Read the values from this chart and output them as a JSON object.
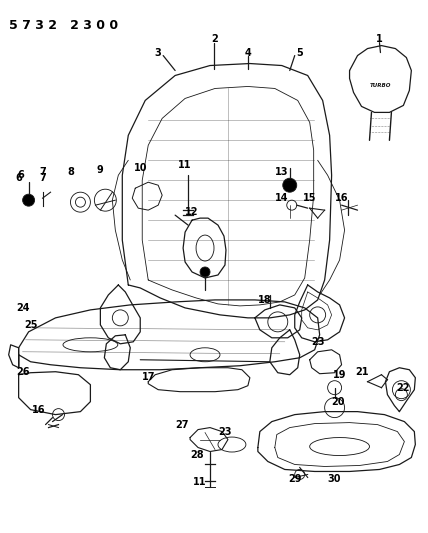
{
  "bg_color": "#ffffff",
  "line_color": "#1a1a1a",
  "fig_width": 4.28,
  "fig_height": 5.33,
  "dpi": 100,
  "title": "5 7 3 2   2 3 0 0"
}
